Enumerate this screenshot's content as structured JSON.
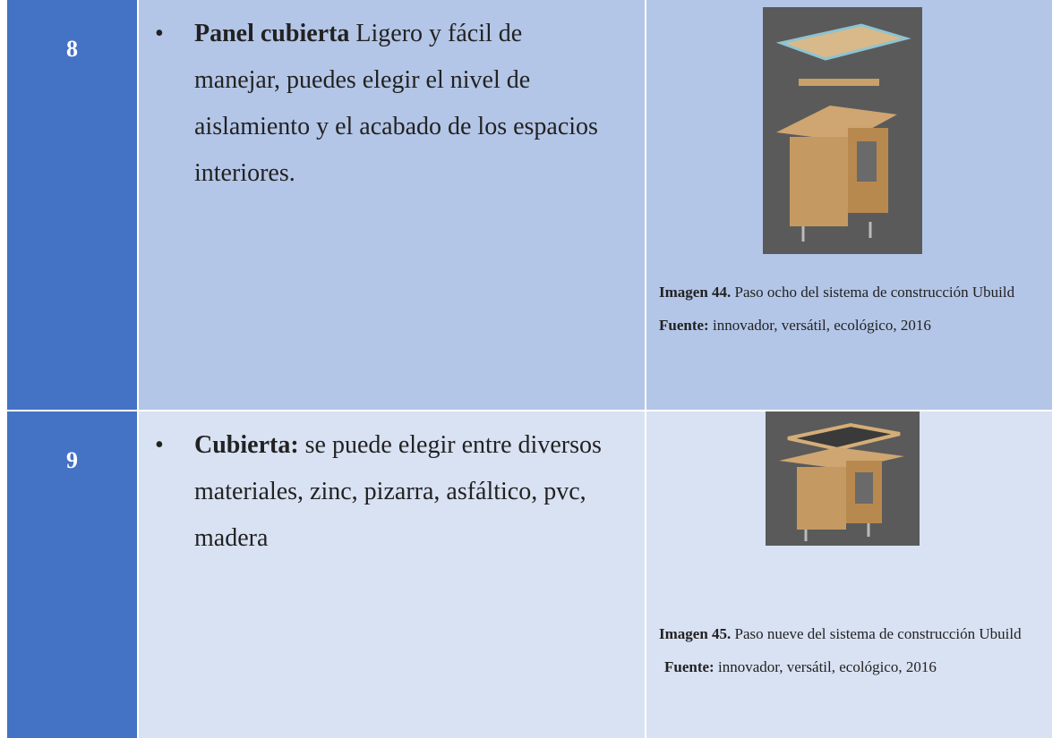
{
  "table": {
    "rows": [
      {
        "number": "8",
        "label": "Panel cubierta",
        "text": "Ligero y fácil de manejar, puedes elegir el nivel de aislamiento y el acabado de los espacios interiores.",
        "caption_label": "Imagen 44.",
        "caption_text": "Paso ocho del sistema de construcción Ubuild",
        "source_label": "Fuente:",
        "source_text": "innovador, versátil, ecológico, 2016"
      },
      {
        "number": "9",
        "label": "Cubierta:",
        "text": "se puede elegir entre diversos materiales, zinc, pizarra, asfáltico, pvc, madera",
        "caption_label": "Imagen 45.",
        "caption_text": "Paso nueve del sistema de construcción Ubuild",
        "source_label": "Fuente:",
        "source_text": "innovador, versátil, ecológico, 2016"
      }
    ]
  }
}
